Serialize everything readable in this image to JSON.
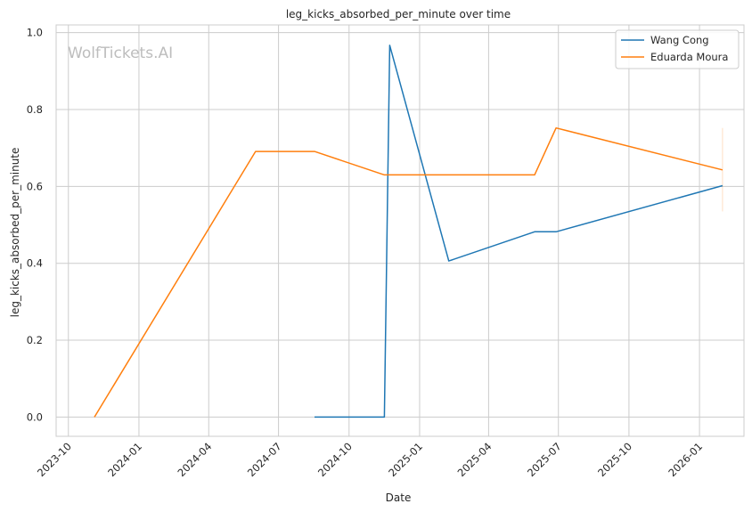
{
  "chart_data": {
    "type": "line",
    "title": "leg_kicks_absorbed_per_minute over time",
    "xlabel": "Date",
    "ylabel": "leg_kicks_absorbed_per_minute",
    "watermark": "WolfTickets.AI",
    "x_ticks": [
      "2023-10",
      "2024-01",
      "2024-04",
      "2024-07",
      "2024-10",
      "2025-01",
      "2025-04",
      "2025-07",
      "2025-10",
      "2026-01"
    ],
    "y_ticks": [
      "0.0",
      "0.2",
      "0.4",
      "0.6",
      "0.8",
      "1.0"
    ],
    "xlim": [
      "2023-09-15",
      "2026-02-28"
    ],
    "ylim": [
      -0.05,
      1.02
    ],
    "grid": true,
    "legend_position": "top-right",
    "series": [
      {
        "name": "Wang Cong",
        "color": "#1f77b4",
        "points": [
          {
            "x": "2024-08-17",
            "y": 0.0
          },
          {
            "x": "2024-11-16",
            "y": 0.0
          },
          {
            "x": "2024-11-23",
            "y": 0.967
          },
          {
            "x": "2025-02-08",
            "y": 0.406
          },
          {
            "x": "2025-05-31",
            "y": 0.482
          },
          {
            "x": "2025-06-28",
            "y": 0.482
          },
          {
            "x": "2026-01-31",
            "y": 0.602
          }
        ]
      },
      {
        "name": "Eduarda Moura",
        "color": "#ff7f0e",
        "points": [
          {
            "x": "2023-11-04",
            "y": 0.0
          },
          {
            "x": "2024-06-01",
            "y": 0.691
          },
          {
            "x": "2024-08-17",
            "y": 0.691
          },
          {
            "x": "2024-11-16",
            "y": 0.63
          },
          {
            "x": "2025-05-31",
            "y": 0.63
          },
          {
            "x": "2025-06-28",
            "y": 0.752
          },
          {
            "x": "2026-01-31",
            "y": 0.643
          }
        ],
        "error_bar": {
          "x": "2026-01-31",
          "low": 0.535,
          "high": 0.752
        }
      }
    ]
  }
}
